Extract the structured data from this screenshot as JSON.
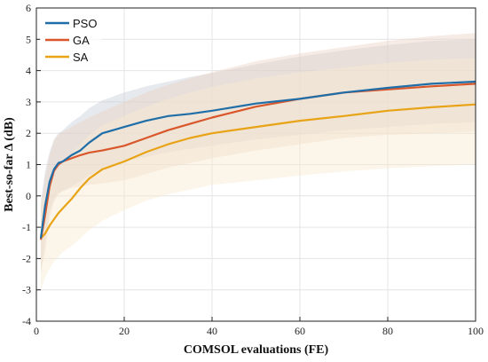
{
  "chart_data": {
    "type": "line",
    "xlabel": "COMSOL evaluations (FE)",
    "ylabel": "Best-so-far Δ (dB)",
    "xlim": [
      0,
      100
    ],
    "ylim": [
      -4,
      6
    ],
    "xticks": [
      0,
      20,
      40,
      60,
      80,
      100
    ],
    "yticks": [
      -4,
      -3,
      -2,
      -1,
      0,
      1,
      2,
      3,
      4,
      5,
      6
    ],
    "grid": true,
    "legend_position": "top-left",
    "series": [
      {
        "name": "PSO",
        "color": "#1f6ea8",
        "band_color": "#c8cfd8",
        "x": [
          1,
          2,
          3,
          4,
          5,
          6,
          8,
          10,
          12,
          15,
          20,
          25,
          30,
          35,
          40,
          50,
          60,
          70,
          80,
          90,
          100
        ],
        "y": [
          -1.35,
          -0.3,
          0.45,
          0.85,
          1.05,
          1.1,
          1.3,
          1.45,
          1.7,
          2.0,
          2.2,
          2.4,
          2.55,
          2.62,
          2.72,
          2.95,
          3.1,
          3.3,
          3.45,
          3.58,
          3.65
        ],
        "upper": [
          -0.2,
          0.8,
          1.4,
          1.8,
          2.0,
          2.1,
          2.35,
          2.55,
          2.8,
          3.05,
          3.3,
          3.5,
          3.65,
          3.8,
          3.92,
          4.2,
          4.45,
          4.65,
          4.82,
          4.95,
          5.0
        ],
        "lower": [
          -2.5,
          -1.4,
          -0.5,
          -0.1,
          0.1,
          0.15,
          0.3,
          0.45,
          0.65,
          0.9,
          1.1,
          1.25,
          1.4,
          1.5,
          1.6,
          1.8,
          1.95,
          2.1,
          2.2,
          2.3,
          2.35
        ]
      },
      {
        "name": "GA",
        "color": "#d9572b",
        "band_color": "#ecd3c6",
        "x": [
          1,
          2,
          3,
          4,
          5,
          6,
          8,
          10,
          12,
          15,
          20,
          25,
          30,
          35,
          40,
          50,
          60,
          70,
          80,
          90,
          100
        ],
        "y": [
          -1.4,
          -0.6,
          0.3,
          0.8,
          1.0,
          1.1,
          1.2,
          1.3,
          1.38,
          1.45,
          1.6,
          1.85,
          2.1,
          2.3,
          2.5,
          2.85,
          3.1,
          3.3,
          3.4,
          3.5,
          3.58
        ],
        "upper": [
          -0.4,
          0.6,
          1.3,
          1.75,
          1.95,
          2.05,
          2.2,
          2.35,
          2.5,
          2.7,
          3.0,
          3.3,
          3.55,
          3.75,
          3.95,
          4.3,
          4.55,
          4.75,
          4.95,
          5.1,
          5.2
        ],
        "lower": [
          -2.4,
          -1.8,
          -0.7,
          -0.2,
          0.05,
          0.15,
          0.25,
          0.3,
          0.35,
          0.4,
          0.5,
          0.7,
          0.9,
          1.05,
          1.2,
          1.45,
          1.65,
          1.85,
          1.95,
          2.0,
          2.05
        ]
      },
      {
        "name": "SA",
        "color": "#e8a317",
        "band_color": "#f8ead0",
        "x": [
          1,
          2,
          3,
          4,
          5,
          6,
          8,
          10,
          12,
          15,
          20,
          25,
          30,
          35,
          40,
          50,
          60,
          70,
          80,
          90,
          100
        ],
        "y": [
          -1.35,
          -1.2,
          -0.95,
          -0.75,
          -0.55,
          -0.4,
          -0.1,
          0.25,
          0.55,
          0.85,
          1.1,
          1.4,
          1.65,
          1.85,
          2.0,
          2.2,
          2.4,
          2.55,
          2.72,
          2.83,
          2.92
        ],
        "upper": [
          -0.2,
          0.1,
          0.45,
          0.7,
          0.9,
          1.1,
          1.35,
          1.65,
          1.95,
          2.25,
          2.55,
          2.85,
          3.1,
          3.3,
          3.48,
          3.75,
          3.95,
          4.1,
          4.25,
          4.35,
          4.4
        ],
        "lower": [
          -3.0,
          -2.6,
          -2.3,
          -2.1,
          -1.95,
          -1.8,
          -1.6,
          -1.35,
          -1.1,
          -0.8,
          -0.45,
          -0.15,
          0.05,
          0.2,
          0.35,
          0.5,
          0.65,
          0.78,
          0.88,
          0.95,
          1.0
        ]
      }
    ]
  }
}
